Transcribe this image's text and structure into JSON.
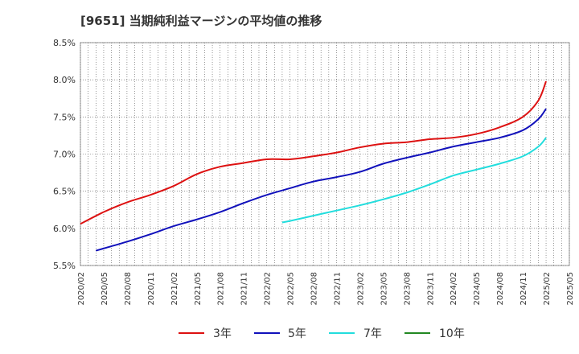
{
  "chart_data": {
    "type": "line",
    "title": "[9651]  当期純利益マージンの平均値の推移",
    "xlabel": "",
    "ylabel": "",
    "ylim": [
      5.5,
      8.5
    ],
    "y_ticks": [
      "5.5%",
      "6.0%",
      "6.5%",
      "7.0%",
      "7.5%",
      "8.0%",
      "8.5%"
    ],
    "y_tick_values": [
      5.5,
      6.0,
      6.5,
      7.0,
      7.5,
      8.0,
      8.5
    ],
    "x_ticks": [
      "2020/02",
      "2020/05",
      "2020/08",
      "2020/11",
      "2021/02",
      "2021/05",
      "2021/08",
      "2021/11",
      "2022/02",
      "2022/05",
      "2022/08",
      "2022/11",
      "2023/02",
      "2023/05",
      "2023/08",
      "2023/11",
      "2024/02",
      "2024/05",
      "2024/08",
      "2024/11",
      "2025/02",
      "2025/05"
    ],
    "grid": true,
    "legend_position": "bottom",
    "series": [
      {
        "name": "3年",
        "color": "#dd1111",
        "x": [
          "2020/02",
          "2020/05",
          "2020/08",
          "2020/11",
          "2021/02",
          "2021/05",
          "2021/08",
          "2021/11",
          "2022/02",
          "2022/05",
          "2022/08",
          "2022/11",
          "2023/02",
          "2023/05",
          "2023/08",
          "2023/11",
          "2024/02",
          "2024/05",
          "2024/08",
          "2024/11",
          "2025/01",
          "2025/02"
        ],
        "values": [
          6.06,
          6.22,
          6.35,
          6.45,
          6.57,
          6.73,
          6.83,
          6.88,
          6.93,
          6.93,
          6.97,
          7.02,
          7.09,
          7.14,
          7.16,
          7.2,
          7.22,
          7.27,
          7.36,
          7.5,
          7.72,
          7.98
        ]
      },
      {
        "name": "5年",
        "color": "#1111bb",
        "x": [
          "2020/04",
          "2020/05",
          "2020/08",
          "2020/11",
          "2021/02",
          "2021/05",
          "2021/08",
          "2021/11",
          "2022/02",
          "2022/05",
          "2022/08",
          "2022/11",
          "2023/02",
          "2023/05",
          "2023/08",
          "2023/11",
          "2024/02",
          "2024/05",
          "2024/08",
          "2024/11",
          "2025/01",
          "2025/02"
        ],
        "values": [
          5.7,
          5.73,
          5.82,
          5.92,
          6.03,
          6.12,
          6.22,
          6.34,
          6.45,
          6.54,
          6.63,
          6.69,
          6.76,
          6.87,
          6.95,
          7.02,
          7.1,
          7.16,
          7.22,
          7.32,
          7.47,
          7.61
        ]
      },
      {
        "name": "7年",
        "color": "#22dddd",
        "x": [
          "2022/04",
          "2022/05",
          "2022/08",
          "2022/11",
          "2023/02",
          "2023/05",
          "2023/08",
          "2023/11",
          "2024/02",
          "2024/05",
          "2024/08",
          "2024/11",
          "2025/01",
          "2025/02"
        ],
        "values": [
          6.08,
          6.1,
          6.17,
          6.24,
          6.31,
          6.39,
          6.48,
          6.59,
          6.71,
          6.79,
          6.87,
          6.97,
          7.1,
          7.22
        ]
      },
      {
        "name": "10年",
        "color": "#228822",
        "x": [],
        "values": []
      }
    ]
  }
}
